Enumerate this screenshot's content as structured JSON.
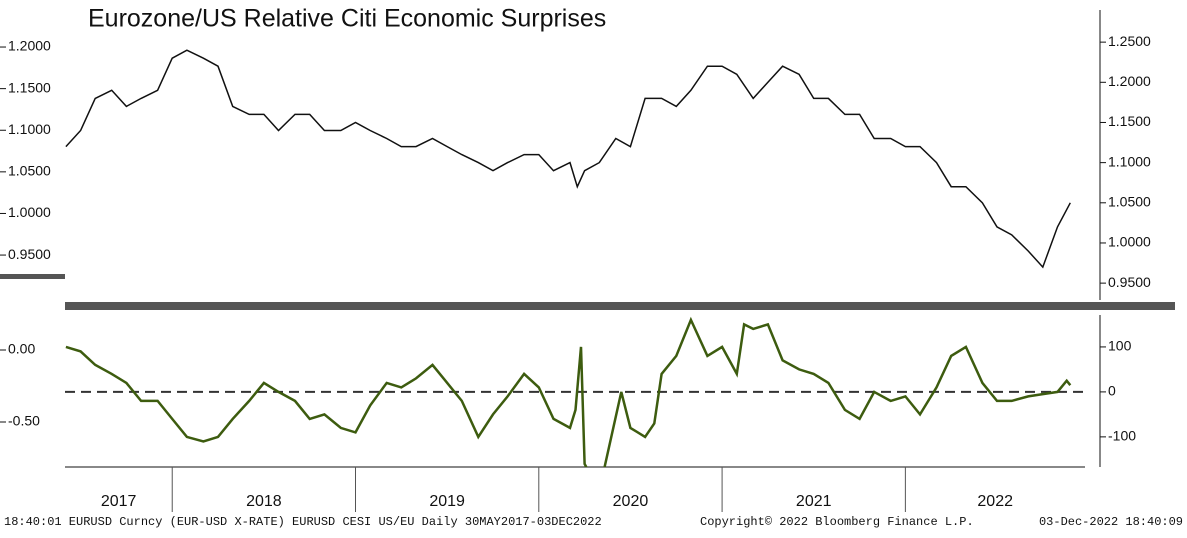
{
  "chart_data": [
    {
      "type": "line",
      "title": "Eurozone/US Relative Citi Economic Surprises",
      "xlim": [
        2017.415,
        2022.98
      ],
      "xticks": [
        2017,
        2018,
        2019,
        2020,
        2021,
        2022
      ],
      "ylim": [
        0.896,
        1.2445
      ],
      "yticks": [
        {
          "value": 0.95,
          "label": "0.9500"
        },
        {
          "value": 1.0,
          "label": "1.0000"
        },
        {
          "value": 1.05,
          "label": "1.0500"
        },
        {
          "value": 1.1,
          "label": "1.1000"
        },
        {
          "value": 1.15,
          "label": "1.1500"
        },
        {
          "value": 1.2,
          "label": "1.2000"
        }
      ],
      "y2lim": [
        0.929,
        1.29
      ],
      "y2ticks": [
        {
          "value": 0.95,
          "label": "0.9500"
        },
        {
          "value": 1.0,
          "label": "1.0000"
        },
        {
          "value": 1.05,
          "label": "1.0500"
        },
        {
          "value": 1.1,
          "label": "1.1000"
        },
        {
          "value": 1.15,
          "label": "1.1500"
        },
        {
          "value": 1.2,
          "label": "1.2000"
        },
        {
          "value": 1.25,
          "label": "1.2500"
        }
      ],
      "series": [
        {
          "name": "EURUSD",
          "color": "#111111",
          "axis": "y2",
          "x": [
            2017.42,
            2017.5,
            2017.58,
            2017.67,
            2017.75,
            2017.83,
            2017.92,
            2018.0,
            2018.08,
            2018.17,
            2018.25,
            2018.33,
            2018.42,
            2018.5,
            2018.58,
            2018.67,
            2018.75,
            2018.83,
            2018.92,
            2019.0,
            2019.08,
            2019.17,
            2019.25,
            2019.33,
            2019.42,
            2019.5,
            2019.58,
            2019.67,
            2019.75,
            2019.83,
            2019.92,
            2020.0,
            2020.08,
            2020.17,
            2020.21,
            2020.25,
            2020.33,
            2020.42,
            2020.5,
            2020.58,
            2020.67,
            2020.75,
            2020.83,
            2020.92,
            2021.0,
            2021.08,
            2021.17,
            2021.25,
            2021.33,
            2021.42,
            2021.5,
            2021.58,
            2021.67,
            2021.75,
            2021.83,
            2021.92,
            2022.0,
            2022.08,
            2022.17,
            2022.25,
            2022.33,
            2022.42,
            2022.5,
            2022.58,
            2022.67,
            2022.75,
            2022.83,
            2022.9
          ],
          "values": [
            1.12,
            1.14,
            1.18,
            1.19,
            1.17,
            1.18,
            1.19,
            1.23,
            1.24,
            1.23,
            1.22,
            1.17,
            1.16,
            1.16,
            1.14,
            1.16,
            1.16,
            1.14,
            1.14,
            1.15,
            1.14,
            1.13,
            1.12,
            1.12,
            1.13,
            1.12,
            1.11,
            1.1,
            1.09,
            1.1,
            1.11,
            1.11,
            1.09,
            1.1,
            1.07,
            1.09,
            1.1,
            1.13,
            1.12,
            1.18,
            1.18,
            1.17,
            1.19,
            1.22,
            1.22,
            1.21,
            1.18,
            1.2,
            1.22,
            1.21,
            1.18,
            1.18,
            1.16,
            1.16,
            1.13,
            1.13,
            1.12,
            1.12,
            1.1,
            1.07,
            1.07,
            1.05,
            1.02,
            1.01,
            0.99,
            0.97,
            1.02,
            1.05
          ]
        }
      ]
    },
    {
      "type": "line",
      "xlim": [
        2017.415,
        2022.98
      ],
      "ylim": [
        -0.8125,
        0.243
      ],
      "yticks": [
        {
          "value": -0.5,
          "label": "-0.50"
        },
        {
          "value": 0,
          "label": "0.00"
        }
      ],
      "y2lim": [
        -167,
        171
      ],
      "y2ticks": [
        -100,
        0,
        100
      ],
      "hline": 0,
      "series": [
        {
          "name": "EURUSD CESI US/EU",
          "color": "#3d5c0f",
          "axis": "y2",
          "x": [
            2017.42,
            2017.5,
            2017.58,
            2017.67,
            2017.75,
            2017.83,
            2017.92,
            2018.0,
            2018.08,
            2018.17,
            2018.25,
            2018.33,
            2018.42,
            2018.5,
            2018.58,
            2018.67,
            2018.75,
            2018.83,
            2018.92,
            2019.0,
            2019.08,
            2019.17,
            2019.25,
            2019.33,
            2019.42,
            2019.5,
            2019.58,
            2019.67,
            2019.75,
            2019.83,
            2019.92,
            2020.0,
            2020.08,
            2020.17,
            2020.2,
            2020.23,
            2020.25,
            2020.33,
            2020.45,
            2020.5,
            2020.58,
            2020.63,
            2020.67,
            2020.75,
            2020.83,
            2020.92,
            2021.0,
            2021.08,
            2021.12,
            2021.17,
            2021.25,
            2021.33,
            2021.42,
            2021.5,
            2021.58,
            2021.67,
            2021.75,
            2021.83,
            2021.92,
            2022.0,
            2022.08,
            2022.17,
            2022.25,
            2022.33,
            2022.42,
            2022.5,
            2022.58,
            2022.67,
            2022.75,
            2022.83,
            2022.88,
            2022.9
          ],
          "values": [
            100,
            90,
            60,
            40,
            20,
            -20,
            -20,
            -60,
            -100,
            -110,
            -100,
            -60,
            -20,
            20,
            0,
            -20,
            -60,
            -50,
            -80,
            -90,
            -30,
            20,
            10,
            30,
            60,
            20,
            -20,
            -100,
            -50,
            -10,
            40,
            10,
            -60,
            -80,
            -40,
            100,
            -160,
            -220,
            0,
            -80,
            -100,
            -70,
            40,
            80,
            160,
            80,
            100,
            40,
            150,
            140,
            150,
            70,
            50,
            40,
            20,
            -40,
            -60,
            0,
            -20,
            -10,
            -50,
            10,
            80,
            100,
            20,
            -20,
            -20,
            -10,
            -5,
            0,
            25,
            15
          ]
        }
      ]
    }
  ],
  "footer": {
    "left": "18:40:01 EURUSD Curncy (EUR-USD X-RATE) EURUSD CESI US/EU  Daily 30MAY2017-03DEC2022",
    "middle": "Copyright© 2022 Bloomberg Finance L.P.",
    "right": "03-Dec-2022 18:40:09"
  }
}
